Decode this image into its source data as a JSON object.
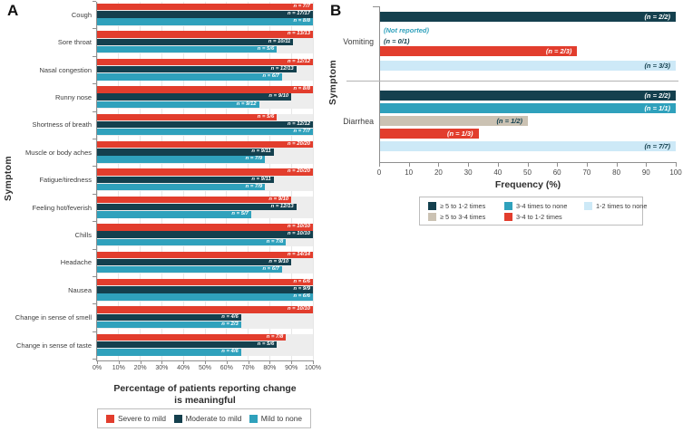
{
  "panels": {
    "a": {
      "letter": "A"
    },
    "b": {
      "letter": "B"
    }
  },
  "colors": {
    "severe_red": "#e23d2d",
    "moderate_navy": "#14404e",
    "mild_teal": "#2fa1bc",
    "light_blue": "#cde9f7",
    "tan": "#cbc2b3",
    "band_gray": "#ededed",
    "grid_gray": "#e7e7e7",
    "axis_gray": "#8f8f8f",
    "separator_gray": "#b3b3b3",
    "text_dark": "#2e2e2e"
  },
  "chart_data": [
    {
      "id": "A",
      "type": "bar",
      "orientation": "horizontal",
      "xlabel_line1": "Percentage of patients reporting change",
      "xlabel_line2": "is meaningful",
      "ylabel": "Symptom",
      "xlim": [
        0,
        100
      ],
      "grid": true,
      "x_ticks": [
        "0%",
        "10%",
        "20%",
        "30%",
        "40%",
        "50%",
        "60%",
        "70%",
        "80%",
        "90%",
        "100%"
      ],
      "legend_position": "bottom",
      "legend": [
        {
          "label": "Severe to mild",
          "color_key": "severe_red"
        },
        {
          "label": "Moderate to mild",
          "color_key": "moderate_navy"
        },
        {
          "label": "Mild to none",
          "color_key": "mild_teal"
        }
      ],
      "categories": [
        "Cough",
        "Sore throat",
        "Nasal congestion",
        "Runny nose",
        "Shortness of breath",
        "Muscle or body aches",
        "Fatigue/tiredness",
        "Feeling hot/feverish",
        "Chills",
        "Headache",
        "Nausea",
        "Change in sense of smell",
        "Change in sense of taste"
      ],
      "series": [
        {
          "name": "Severe to mild",
          "color_key": "severe_red",
          "values": [
            100,
            100,
            100,
            100,
            83.3,
            100,
            100,
            90,
            100,
            100,
            100,
            100,
            87.5
          ],
          "labels": [
            "n = 7/7",
            "n = 13/13",
            "n = 12/12",
            "n = 8/8",
            "n = 5/6",
            "n = 20/20",
            "n = 20/20",
            "n = 9/10",
            "n = 10/10",
            "n = 14/14",
            "n = 6/6",
            "n = 10/10",
            "n = 7/8"
          ]
        },
        {
          "name": "Moderate to mild",
          "color_key": "moderate_navy",
          "values": [
            100,
            90.9,
            92.3,
            90,
            100,
            81.8,
            81.8,
            92.3,
            100,
            90,
            100,
            66.7,
            83.3
          ],
          "labels": [
            "n = 17/17",
            "n = 10/11",
            "n = 12/13",
            "n = 9/10",
            "n = 12/12",
            "n = 9/11",
            "n = 9/11",
            "n = 12/13",
            "n = 10/10",
            "n = 9/10",
            "n = 9/9",
            "n = 4/6",
            "n = 5/6"
          ]
        },
        {
          "name": "Mild to none",
          "color_key": "mild_teal",
          "values": [
            100,
            83.3,
            85.7,
            75,
            100,
            77.8,
            77.8,
            71.4,
            87.5,
            85.7,
            100,
            66.7,
            66.7
          ],
          "labels": [
            "n = 8/8",
            "n = 5/6",
            "n = 6/7",
            "n = 9/12",
            "n = 7/7",
            "n = 7/9",
            "n = 7/9",
            "n = 5/7",
            "n = 7/8",
            "n = 6/7",
            "n = 6/6",
            "n = 2/3",
            "n = 4/6"
          ]
        }
      ]
    },
    {
      "id": "B",
      "type": "bar",
      "orientation": "horizontal",
      "xlabel": "Frequency (%)",
      "ylabel": "Symptom",
      "xlim": [
        0,
        100
      ],
      "grid": false,
      "x_ticks": [
        "0",
        "10",
        "20",
        "30",
        "40",
        "50",
        "60",
        "70",
        "80",
        "90",
        "100"
      ],
      "legend_position": "bottom",
      "legend": [
        {
          "label": "≥ 5 to 1-2 times",
          "color_key": "moderate_navy"
        },
        {
          "label": "3-4 times to none",
          "color_key": "mild_teal"
        },
        {
          "label": "1-2 times to none",
          "color_key": "light_blue"
        },
        {
          "label": "≥ 5 to 3-4 times",
          "color_key": "tan"
        },
        {
          "label": "3-4 to 1-2 times",
          "color_key": "severe_red"
        }
      ],
      "groups": [
        {
          "category": "Vomiting",
          "bars": [
            {
              "series": "≥ 5 to 1-2 times",
              "color_key": "moderate_navy",
              "value": 100,
              "label": "(n = 2/2)",
              "label_style": "light"
            },
            {
              "series": "3-4 times to none",
              "color_key": "mild_teal",
              "value": 0,
              "label": "(n = 0/1)",
              "note": "(Not reported)"
            },
            {
              "series": "3-4 to 1-2 times",
              "color_key": "severe_red",
              "value": 66.7,
              "label": "(n = 2/3)",
              "label_style": "light"
            },
            {
              "series": "1-2 times to none",
              "color_key": "light_blue",
              "value": 100,
              "label": "(n = 3/3)",
              "label_style": "dark"
            }
          ]
        },
        {
          "category": "Diarrhea",
          "bars": [
            {
              "series": "≥ 5 to 1-2 times",
              "color_key": "moderate_navy",
              "value": 100,
              "label": "(n = 2/2)",
              "label_style": "light"
            },
            {
              "series": "3-4 times to none",
              "color_key": "mild_teal",
              "value": 100,
              "label": "(n = 1/1)",
              "label_style": "light"
            },
            {
              "series": "≥ 5 to 3-4 times",
              "color_key": "tan",
              "value": 50,
              "label": "(n = 1/2)",
              "label_style": "dark"
            },
            {
              "series": "3-4 to 1-2 times",
              "color_key": "severe_red",
              "value": 33.3,
              "label": "(n = 1/3)",
              "label_style": "light"
            },
            {
              "series": "1-2 times to none",
              "color_key": "light_blue",
              "value": 100,
              "label": "(n = 7/7)",
              "label_style": "dark"
            }
          ]
        }
      ]
    }
  ]
}
